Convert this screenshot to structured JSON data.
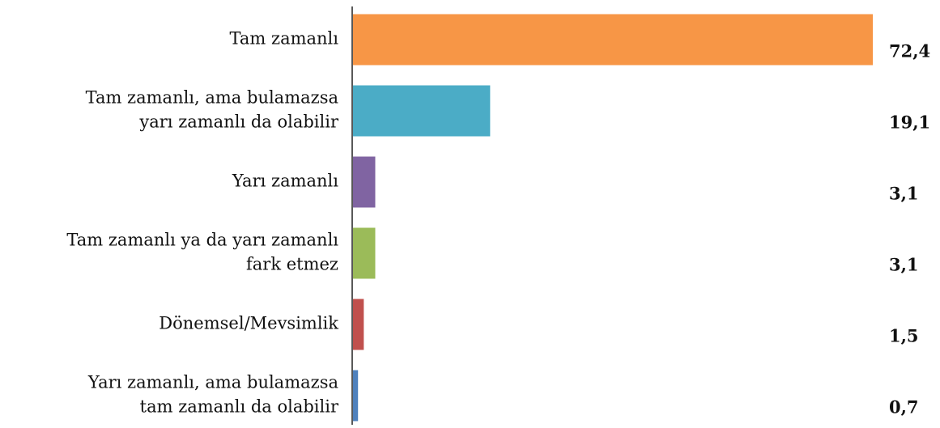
{
  "chart_data": {
    "type": "bar",
    "orientation": "horizontal",
    "categories": [
      [
        "Tam zamanlı"
      ],
      [
        "Tam zamanlı, ama bulamazsa",
        "yarı zamanlı da olabilir"
      ],
      [
        "Yarı zamanlı"
      ],
      [
        "Tam zamanlı ya da yarı zamanlı",
        "fark etmez"
      ],
      [
        "Dönemsel/Mevsimlik"
      ],
      [
        "Yarı zamanlı, ama bulamazsa",
        "tam zamanlı da olabilir"
      ]
    ],
    "values": [
      72.4,
      19.1,
      3.1,
      3.1,
      1.5,
      0.7
    ],
    "value_labels": [
      "72,4",
      "19,1",
      "3,1",
      "3,1",
      "1,5",
      "0,7"
    ],
    "colors": [
      "#f79646",
      "#4bacc6",
      "#8064a2",
      "#9bbb59",
      "#c0504d",
      "#4f81bd"
    ]
  }
}
